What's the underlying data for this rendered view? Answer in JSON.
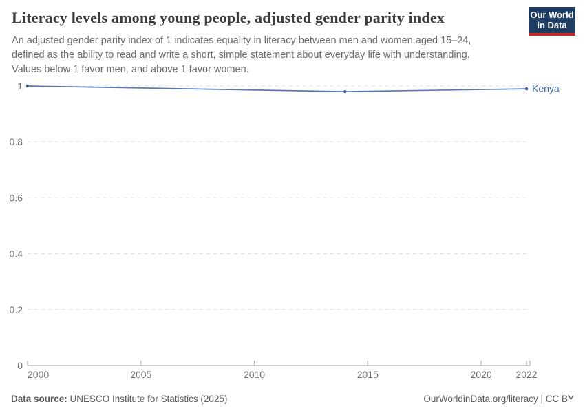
{
  "header": {
    "title": "Literacy levels among young people, adjusted gender parity index",
    "subtitle_lines": [
      "An adjusted gender parity index of 1 indicates equality in literacy between men and women aged 15–24,",
      "defined as the ability to read and write a short, simple statement about everyday life with understanding.",
      "Values below 1 favor men, and above 1 favor women."
    ],
    "logo": {
      "line1": "Our World",
      "line2": "in Data",
      "bg_color": "#1d3d63",
      "bar_color": "#cd2b2b"
    }
  },
  "chart_data": {
    "type": "line",
    "title": "Literacy levels among young people, adjusted gender parity index",
    "xlabel": "",
    "ylabel": "",
    "xlim": [
      2000,
      2022
    ],
    "ylim": [
      0,
      1
    ],
    "x_ticks": [
      2000,
      2005,
      2010,
      2015,
      2020,
      2022
    ],
    "y_ticks": [
      0,
      0.2,
      0.4,
      0.6,
      0.8,
      1
    ],
    "grid": "dashed-horizontal",
    "legend_position": "end-of-line-label",
    "series": [
      {
        "name": "Kenya",
        "color": "#5b79b2",
        "marker_color": "#3d5f9e",
        "label_color": "#3d64a8",
        "points": [
          {
            "x": 2000,
            "y": 1.0
          },
          {
            "x": 2014,
            "y": 0.98
          },
          {
            "x": 2022,
            "y": 0.99
          }
        ]
      }
    ],
    "colors": {
      "grid": "#dcdcdc",
      "axis": "#a5a5a5",
      "tick_label": "#6e6e6e"
    }
  },
  "footer": {
    "source_label": "Data source:",
    "source_value": " UNESCO Institute for Statistics (2025)",
    "rights": "OurWorldinData.org/literacy | CC BY"
  }
}
